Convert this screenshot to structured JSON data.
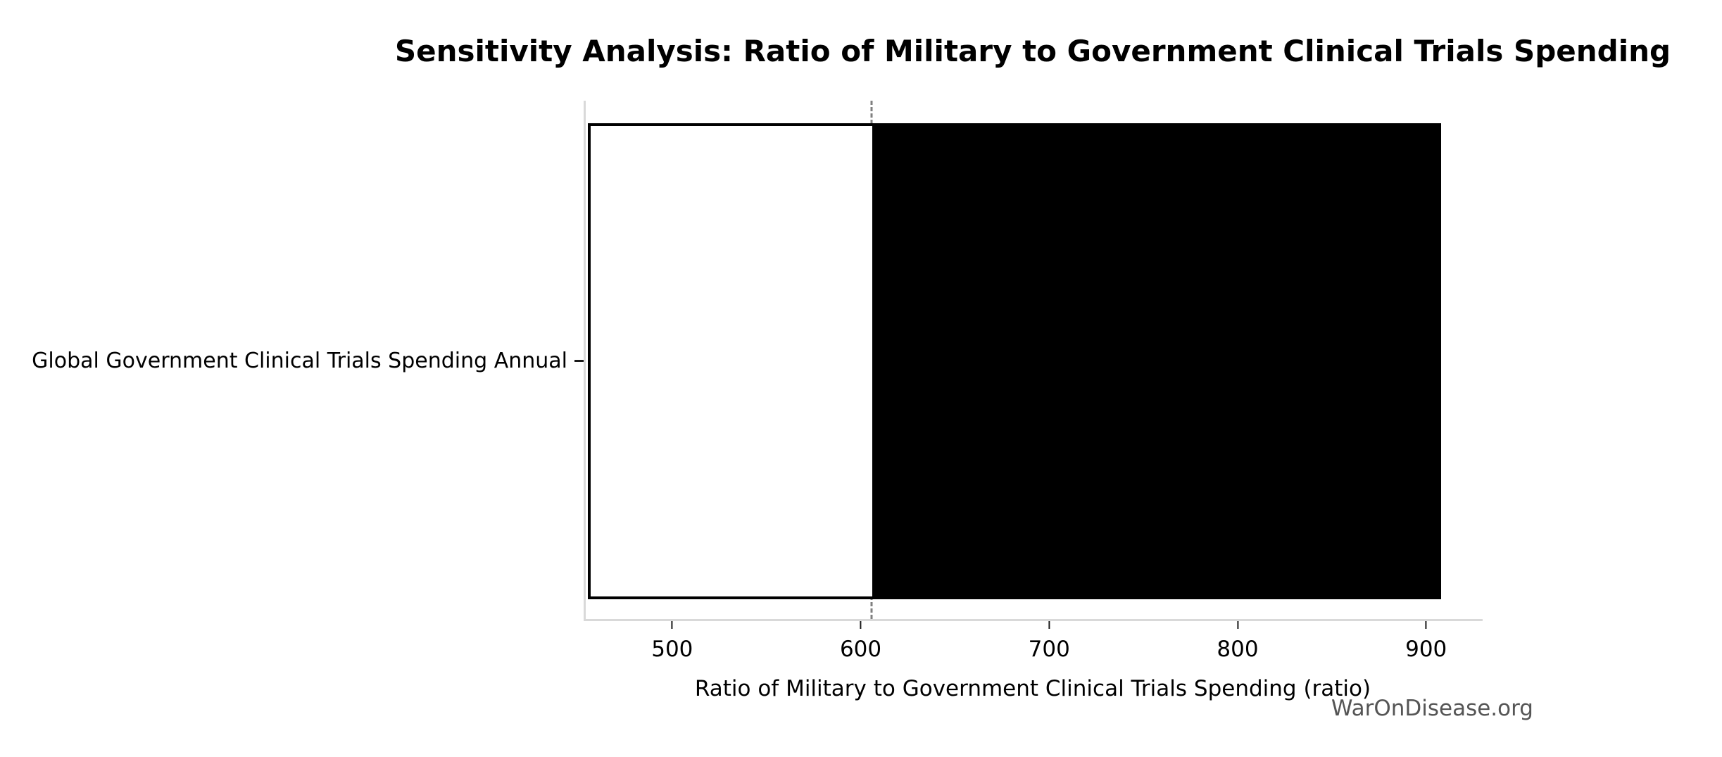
{
  "chart_data": {
    "type": "bar",
    "variant": "tornado-sensitivity",
    "orientation": "horizontal",
    "title": "Sensitivity Analysis: Ratio of Military to Government Clinical Trials Spending",
    "xlabel": "Ratio of Military to Government Clinical Trials Spending (ratio)",
    "ylabel": "",
    "categories": [
      "Global Government Clinical Trials Spending Annual"
    ],
    "x_ticks": [
      500,
      600,
      700,
      800,
      900
    ],
    "xlim": [
      453,
      930
    ],
    "grid": false,
    "legend": null,
    "bars": [
      {
        "category": "Global Government Clinical Trials Spending Annual",
        "low": 454,
        "base": 605,
        "high": 908,
        "low_segment_fill": "#ffffff",
        "high_segment_fill": "#000000",
        "edge_color": "#000000"
      }
    ],
    "baseline": {
      "value": 605,
      "style": "dashed",
      "color": "#808080"
    }
  },
  "watermark": {
    "text": "WarOnDisease.org",
    "color": "#555555"
  },
  "colors": {
    "spine": "#d9d9d9",
    "tick": "#1a1a1a",
    "text": "#000000",
    "background": "#ffffff"
  }
}
